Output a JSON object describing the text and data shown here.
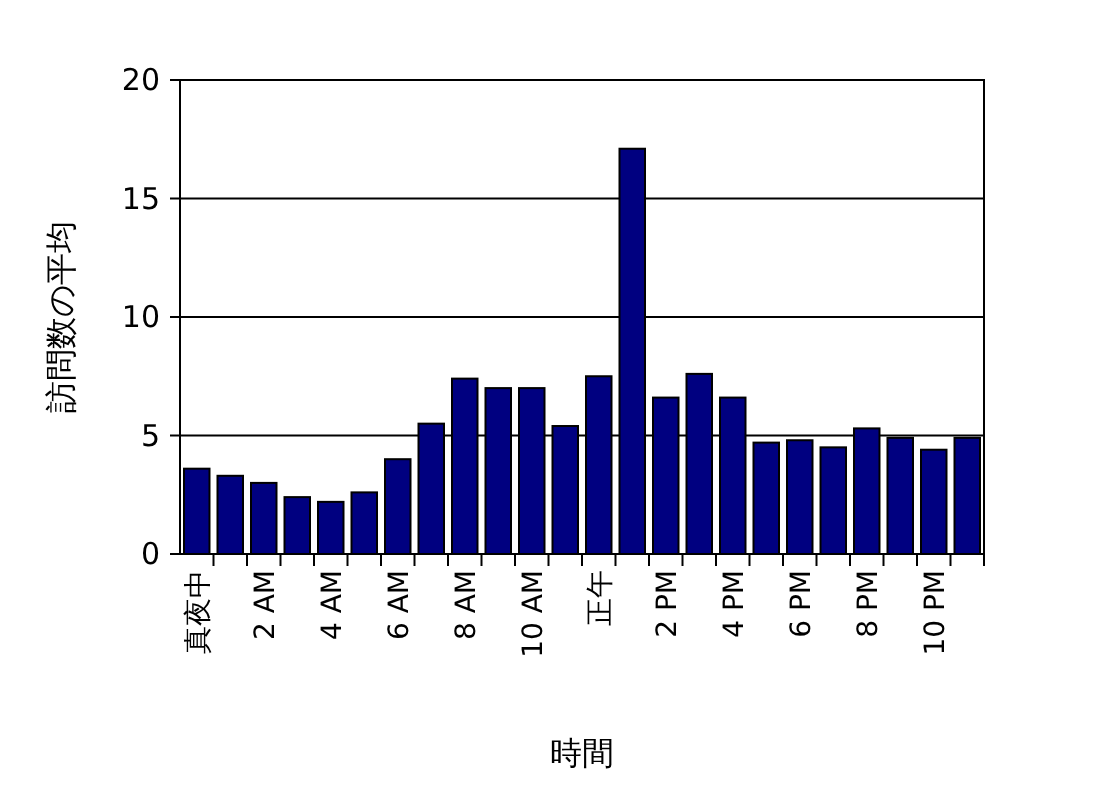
{
  "chart_data": {
    "type": "bar",
    "xlabel": "時間",
    "ylabel": "訪問数の平均",
    "categories": [
      "真夜中",
      null,
      "2 AM",
      null,
      "4 AM",
      null,
      "6 AM",
      null,
      "8 AM",
      null,
      "10 AM",
      null,
      "正午",
      null,
      "2 PM",
      null,
      "4 PM",
      null,
      "6 PM",
      null,
      "8 PM",
      null,
      "10 PM",
      null
    ],
    "values": [
      3.6,
      3.3,
      3.0,
      2.4,
      2.2,
      2.6,
      4.0,
      5.5,
      7.4,
      7.0,
      7.0,
      5.4,
      7.5,
      17.1,
      6.6,
      7.6,
      6.6,
      4.7,
      4.8,
      4.5,
      5.3,
      4.9,
      4.4,
      4.9
    ],
    "color": "#000080",
    "ylim": [
      0,
      20
    ],
    "yticks": [
      0,
      5,
      10,
      15,
      20
    ],
    "grid": "y"
  }
}
